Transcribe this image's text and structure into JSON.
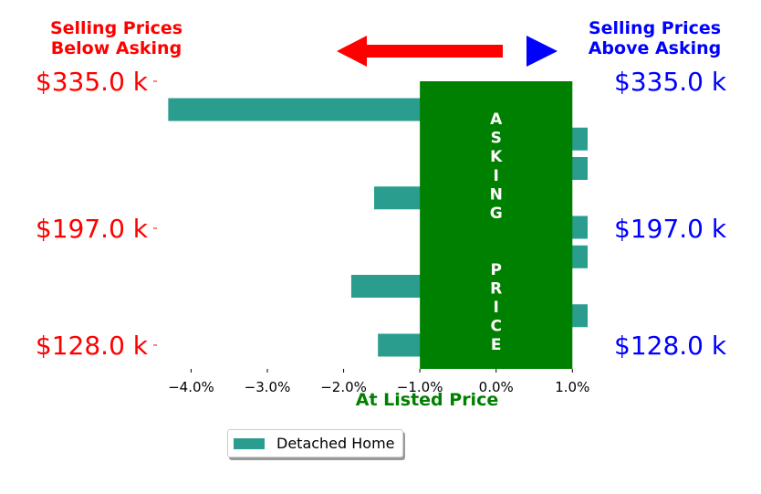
{
  "header": {
    "left_line1": "Selling Prices",
    "left_line2": "Below Asking",
    "right_line1": "Selling Prices",
    "right_line2": "Above Asking"
  },
  "colors": {
    "below": "#ff0000",
    "above": "#0000ff",
    "asking_band": "#008000",
    "bar": "#2a9d8f",
    "xlabel": "#008000"
  },
  "band_label": "ASKING  PRICE",
  "legend": {
    "label": "Detached Home"
  },
  "chart_data": {
    "type": "bar",
    "orientation": "horizontal",
    "xlabel": "At Listed Price",
    "xlim": [
      -4.4,
      1.2
    ],
    "xticks": [
      -4.0,
      -3.0,
      -2.0,
      -1.0,
      0.0,
      1.0
    ],
    "xtick_labels": [
      "−4.0%",
      "−3.0%",
      "−2.0%",
      "−1.0%",
      "0.0%",
      "1.0%"
    ],
    "yticks_left": [
      "$335.0 k",
      "$197.0 k",
      "$128.0 k"
    ],
    "yticks_right": [
      "$335.0 k",
      "$197.0 k",
      "$128.0 k"
    ],
    "asking_band": [
      -1.0,
      1.0
    ],
    "series": [
      {
        "name": "Detached Home",
        "values": [
          -4.3,
          1.2,
          1.2,
          -1.6,
          1.2,
          1.2,
          -1.9,
          1.2,
          -1.55
        ]
      }
    ]
  }
}
